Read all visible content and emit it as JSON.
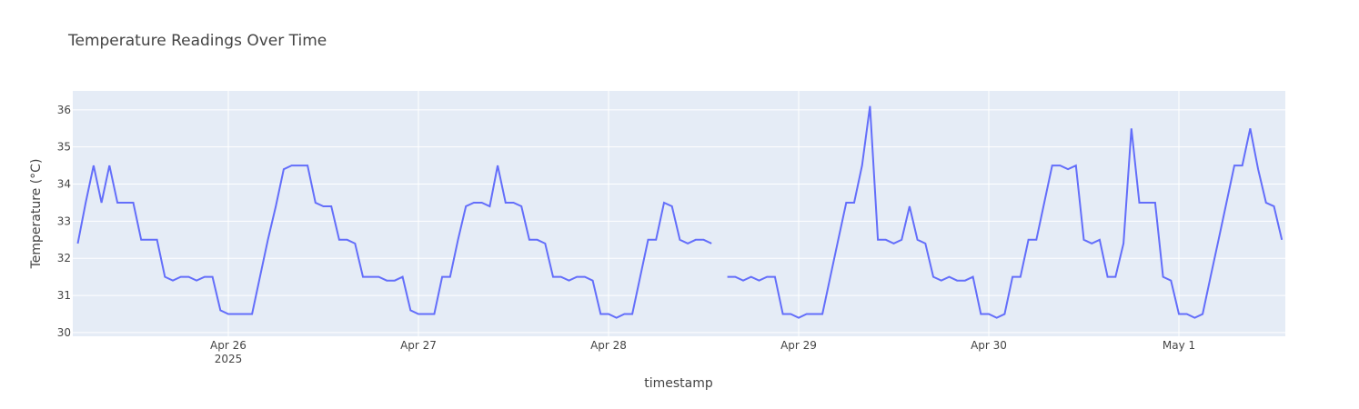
{
  "chart_data": {
    "type": "line",
    "title": "Temperature Readings Over Time",
    "x_label": "timestamp",
    "y_label": "Temperature (°C)",
    "color": "#636efa",
    "grid": true,
    "xlim": [
      "2025-04-25T04:22",
      "2025-05-01T13:26"
    ],
    "xticks": [
      {
        "value": "2025-04-26T00:00",
        "label": "Apr 26"
      },
      {
        "value": "2025-04-27T00:00",
        "label": "Apr 27"
      },
      {
        "value": "2025-04-28T00:00",
        "label": "Apr 28"
      },
      {
        "value": "2025-04-29T00:00",
        "label": "Apr 29"
      },
      {
        "value": "2025-04-30T00:00",
        "label": "Apr 30"
      },
      {
        "value": "2025-05-01T00:00",
        "label": "May 1"
      }
    ],
    "x_year_label": "2025",
    "ylim": [
      29.9,
      36.51
    ],
    "yticks": [
      30,
      31,
      32,
      33,
      34,
      35,
      36
    ],
    "x": [
      "2025-04-25T05:00",
      "2025-04-25T06:00",
      "2025-04-25T07:00",
      "2025-04-25T08:00",
      "2025-04-25T09:00",
      "2025-04-25T10:00",
      "2025-04-25T11:00",
      "2025-04-25T12:00",
      "2025-04-25T13:00",
      "2025-04-25T14:00",
      "2025-04-25T15:00",
      "2025-04-25T16:00",
      "2025-04-25T17:00",
      "2025-04-25T18:00",
      "2025-04-25T19:00",
      "2025-04-25T20:00",
      "2025-04-25T21:00",
      "2025-04-25T22:00",
      "2025-04-25T23:00",
      "2025-04-26T00:00",
      "2025-04-26T01:00",
      "2025-04-26T02:00",
      "2025-04-26T03:00",
      "2025-04-26T04:00",
      "2025-04-26T05:00",
      "2025-04-26T06:00",
      "2025-04-26T07:00",
      "2025-04-26T08:00",
      "2025-04-26T09:00",
      "2025-04-26T10:00",
      "2025-04-26T11:00",
      "2025-04-26T12:00",
      "2025-04-26T13:00",
      "2025-04-26T14:00",
      "2025-04-26T15:00",
      "2025-04-26T16:00",
      "2025-04-26T17:00",
      "2025-04-26T18:00",
      "2025-04-26T19:00",
      "2025-04-26T20:00",
      "2025-04-26T21:00",
      "2025-04-26T22:00",
      "2025-04-26T23:00",
      "2025-04-27T00:00",
      "2025-04-27T01:00",
      "2025-04-27T02:00",
      "2025-04-27T03:00",
      "2025-04-27T04:00",
      "2025-04-27T05:00",
      "2025-04-27T06:00",
      "2025-04-27T07:00",
      "2025-04-27T08:00",
      "2025-04-27T09:00",
      "2025-04-27T10:00",
      "2025-04-27T11:00",
      "2025-04-27T12:00",
      "2025-04-27T13:00",
      "2025-04-27T14:00",
      "2025-04-27T15:00",
      "2025-04-27T16:00",
      "2025-04-27T17:00",
      "2025-04-27T18:00",
      "2025-04-27T19:00",
      "2025-04-27T20:00",
      "2025-04-27T21:00",
      "2025-04-27T22:00",
      "2025-04-27T23:00",
      "2025-04-28T00:00",
      "2025-04-28T01:00",
      "2025-04-28T02:00",
      "2025-04-28T03:00",
      "2025-04-28T04:00",
      "2025-04-28T05:00",
      "2025-04-28T06:00",
      "2025-04-28T07:00",
      "2025-04-28T08:00",
      "2025-04-28T09:00",
      "2025-04-28T10:00",
      "2025-04-28T11:00",
      "2025-04-28T12:00",
      "2025-04-28T13:00",
      "2025-04-28T14:00",
      "2025-04-28T15:00",
      "2025-04-28T16:00",
      "2025-04-28T17:00",
      "2025-04-28T18:00",
      "2025-04-28T19:00",
      "2025-04-28T20:00",
      "2025-04-28T21:00",
      "2025-04-28T22:00",
      "2025-04-28T23:00",
      "2025-04-29T00:00",
      "2025-04-29T01:00",
      "2025-04-29T02:00",
      "2025-04-29T03:00",
      "2025-04-29T04:00",
      "2025-04-29T05:00",
      "2025-04-29T06:00",
      "2025-04-29T07:00",
      "2025-04-29T08:00",
      "2025-04-29T09:00",
      "2025-04-29T10:00",
      "2025-04-29T11:00",
      "2025-04-29T12:00",
      "2025-04-29T13:00",
      "2025-04-29T14:00",
      "2025-04-29T15:00",
      "2025-04-29T16:00",
      "2025-04-29T17:00",
      "2025-04-29T18:00",
      "2025-04-29T19:00",
      "2025-04-29T20:00",
      "2025-04-29T21:00",
      "2025-04-29T22:00",
      "2025-04-29T23:00",
      "2025-04-30T00:00",
      "2025-04-30T01:00",
      "2025-04-30T02:00",
      "2025-04-30T03:00",
      "2025-04-30T04:00",
      "2025-04-30T05:00",
      "2025-04-30T06:00",
      "2025-04-30T07:00",
      "2025-04-30T08:00",
      "2025-04-30T09:00",
      "2025-04-30T10:00",
      "2025-04-30T11:00",
      "2025-04-30T12:00",
      "2025-04-30T13:00",
      "2025-04-30T14:00",
      "2025-04-30T15:00",
      "2025-04-30T16:00",
      "2025-04-30T17:00",
      "2025-04-30T18:00",
      "2025-04-30T19:00",
      "2025-04-30T20:00",
      "2025-04-30T21:00",
      "2025-04-30T22:00",
      "2025-04-30T23:00",
      "2025-05-01T00:00",
      "2025-05-01T01:00",
      "2025-05-01T02:00",
      "2025-05-01T03:00",
      "2025-05-01T04:00",
      "2025-05-01T05:00",
      "2025-05-01T06:00",
      "2025-05-01T07:00",
      "2025-05-01T08:00",
      "2025-05-01T09:00",
      "2025-05-01T10:00",
      "2025-05-01T11:00",
      "2025-05-01T12:00",
      "2025-05-01T13:00"
    ],
    "values": [
      32.4,
      33.5,
      34.5,
      33.5,
      34.5,
      33.5,
      33.5,
      33.5,
      32.5,
      32.5,
      32.5,
      31.5,
      31.4,
      31.5,
      31.5,
      31.4,
      31.5,
      31.5,
      30.6,
      30.5,
      30.5,
      30.5,
      30.5,
      31.5,
      32.5,
      33.4,
      34.4,
      34.5,
      34.5,
      34.5,
      33.5,
      33.4,
      33.4,
      32.5,
      32.5,
      32.4,
      31.5,
      31.5,
      31.5,
      31.4,
      31.4,
      31.5,
      30.6,
      30.5,
      30.5,
      30.5,
      31.5,
      31.5,
      32.5,
      33.4,
      33.5,
      33.5,
      33.4,
      34.5,
      33.5,
      33.5,
      33.4,
      32.5,
      32.5,
      32.4,
      31.5,
      31.5,
      31.4,
      31.5,
      31.5,
      31.4,
      30.5,
      30.5,
      30.4,
      30.5,
      30.5,
      31.5,
      32.5,
      32.5,
      33.5,
      33.4,
      32.5,
      32.4,
      32.5,
      32.5,
      32.4,
      null,
      31.5,
      31.5,
      31.4,
      31.5,
      31.4,
      31.5,
      31.5,
      30.5,
      30.5,
      30.4,
      30.5,
      30.5,
      30.5,
      31.5,
      32.5,
      33.5,
      33.5,
      34.5,
      36.1,
      32.5,
      32.5,
      32.4,
      32.5,
      33.4,
      32.5,
      32.4,
      31.5,
      31.4,
      31.5,
      31.4,
      31.4,
      31.5,
      30.5,
      30.5,
      30.4,
      30.5,
      31.5,
      31.5,
      32.5,
      32.5,
      33.5,
      34.5,
      34.5,
      34.4,
      34.5,
      32.5,
      32.4,
      32.5,
      31.5,
      31.5,
      32.4,
      35.5,
      33.5,
      33.5,
      33.5,
      31.5,
      31.4,
      30.5,
      30.5,
      30.4,
      30.5,
      31.5,
      32.5,
      33.5,
      34.5,
      34.5,
      35.5,
      34.4,
      33.5,
      33.4,
      32.5
    ]
  }
}
